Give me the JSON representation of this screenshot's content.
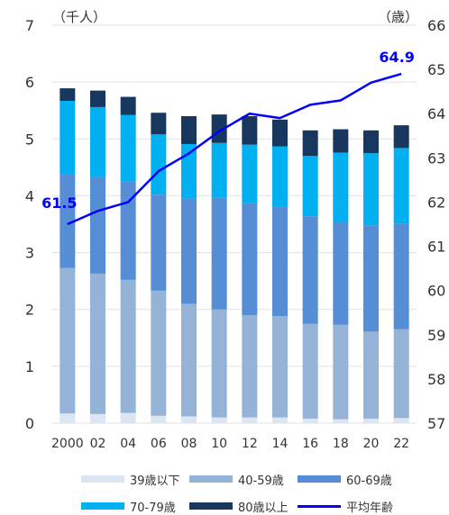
{
  "chart_data": {
    "type": "bar",
    "subtype": "stacked-bar-with-line",
    "categories": [
      "2000",
      "02",
      "04",
      "06",
      "08",
      "10",
      "12",
      "14",
      "16",
      "18",
      "20",
      "22"
    ],
    "series": [
      {
        "name": "39歳以下",
        "color": "#dce6f2",
        "values": [
          0.17,
          0.16,
          0.18,
          0.13,
          0.12,
          0.1,
          0.1,
          0.1,
          0.08,
          0.07,
          0.08,
          0.09
        ]
      },
      {
        "name": "40-59歳",
        "color": "#95b3d7",
        "values": [
          2.56,
          2.47,
          2.34,
          2.2,
          1.98,
          1.9,
          1.8,
          1.78,
          1.67,
          1.66,
          1.53,
          1.56
        ]
      },
      {
        "name": "60-69歳",
        "color": "#558ed5",
        "values": [
          1.65,
          1.7,
          1.73,
          1.69,
          1.85,
          1.97,
          1.97,
          1.93,
          1.89,
          1.81,
          1.87,
          1.86
        ]
      },
      {
        "name": "70-79歳",
        "color": "#00b0f0",
        "values": [
          1.29,
          1.23,
          1.17,
          1.06,
          0.96,
          0.96,
          1.03,
          1.06,
          1.06,
          1.22,
          1.27,
          1.33
        ]
      },
      {
        "name": "80歳以上",
        "color": "#17375e",
        "values": [
          0.22,
          0.29,
          0.32,
          0.38,
          0.49,
          0.5,
          0.5,
          0.47,
          0.45,
          0.41,
          0.4,
          0.4
        ]
      }
    ],
    "line_series": {
      "name": "平均年齢",
      "color": "#0000ff",
      "axis": "right",
      "values": [
        61.5,
        61.8,
        62.0,
        62.7,
        63.1,
        63.6,
        64.0,
        63.9,
        64.2,
        64.3,
        64.7,
        64.9
      ],
      "labeled": [
        {
          "index": 0,
          "text": "61.5"
        },
        {
          "index": 11,
          "text": "64.9"
        }
      ]
    },
    "ylabel": "（千人）",
    "ylabel_right": "（歳）",
    "ylim": [
      0,
      7
    ],
    "ylim_right": [
      57,
      66
    ],
    "yticks": [
      "0",
      "1",
      "2",
      "3",
      "4",
      "5",
      "6",
      "7"
    ],
    "yticks_right": [
      "57",
      "58",
      "59",
      "60",
      "61",
      "62",
      "63",
      "64",
      "65",
      "66"
    ],
    "grid": true,
    "legend_position": "bottom"
  }
}
